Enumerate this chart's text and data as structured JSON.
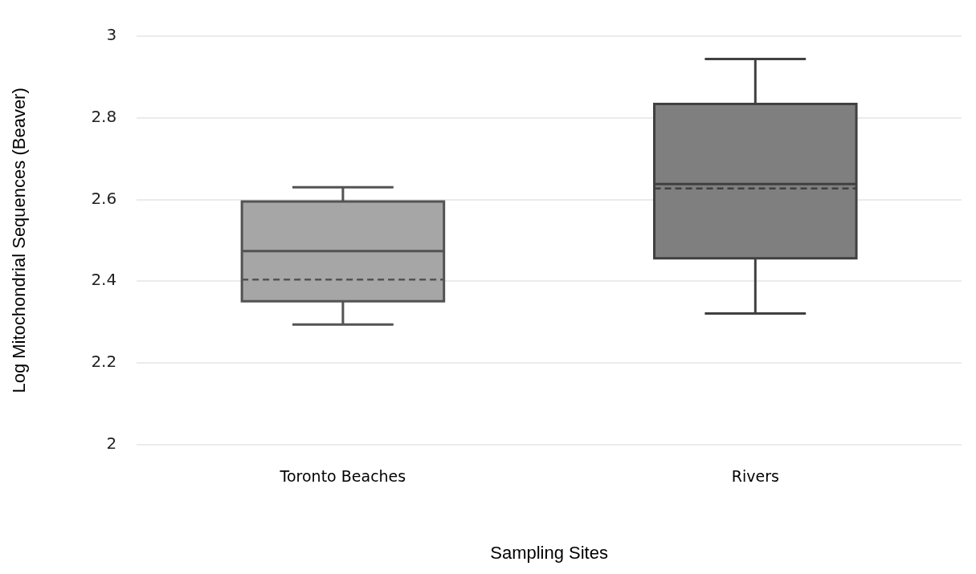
{
  "chart_data": {
    "type": "box",
    "xlabel": "Sampling Sites",
    "ylabel": "Log Mitochondrial Sequences (Beaver)",
    "categories": [
      "Toronto Beaches",
      "Rivers"
    ],
    "colors": [
      "#a6a6a6",
      "#7f7f7f"
    ],
    "boxes": [
      {
        "low": 2.294,
        "q1": 2.351,
        "median": 2.474,
        "q3": 2.595,
        "high": 2.63,
        "mean": 2.404
      },
      {
        "low": 2.321,
        "q1": 2.456,
        "median": 2.638,
        "q3": 2.834,
        "high": 2.944,
        "mean": 2.627
      }
    ],
    "ylim": [
      2,
      3
    ],
    "yticks": [
      2,
      2.2,
      2.4,
      2.6,
      2.8,
      3
    ],
    "grid": "y",
    "line_style": "dashed"
  }
}
